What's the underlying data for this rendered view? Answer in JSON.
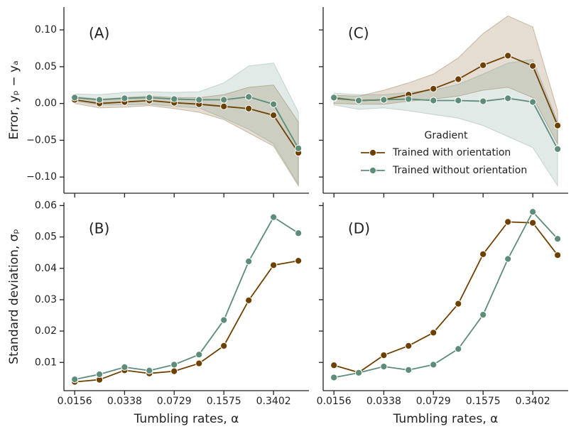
{
  "chart_data": [
    {
      "type": "line",
      "annotation": "(A)",
      "ylabel": "Error, yₚ − yₐ",
      "x": [
        0.0156,
        0.0229,
        0.0338,
        0.0496,
        0.0729,
        0.1072,
        0.1575,
        0.2315,
        0.3402,
        0.5
      ],
      "xlim": [
        0.0132,
        0.589
      ],
      "xticks": [
        0.0156,
        0.0338,
        0.0729,
        0.1575,
        0.3402
      ],
      "xscale": "log",
      "ylim": [
        -0.122,
        0.131
      ],
      "yticks": [
        {
          "value": -0.1,
          "label": "−0.10"
        },
        {
          "value": -0.05,
          "label": "−0.05"
        },
        {
          "value": 0,
          "label": "0.00"
        },
        0.05,
        {
          "value": 0.1,
          "label": "0.10"
        }
      ],
      "series": [
        {
          "name": "Trained with orientation",
          "color": "#6e4000",
          "values": [
            0.005,
            0.0,
            0.002,
            0.004,
            0.001,
            -0.001,
            -0.004,
            -0.007,
            -0.016,
            -0.067
          ],
          "upper": [
            0.009,
            0.006,
            0.008,
            0.01,
            0.008,
            0.008,
            0.012,
            0.022,
            0.025,
            -0.025
          ],
          "lower": [
            0.0,
            -0.006,
            -0.005,
            -0.003,
            -0.007,
            -0.012,
            -0.022,
            -0.04,
            -0.058,
            -0.112
          ]
        },
        {
          "name": "Trained without orientation",
          "color": "#5d8c79",
          "values": [
            0.008,
            0.005,
            0.007,
            0.008,
            0.006,
            0.005,
            0.005,
            0.009,
            -0.001,
            -0.061
          ],
          "upper": [
            0.013,
            0.012,
            0.015,
            0.016,
            0.015,
            0.016,
            0.028,
            0.051,
            0.055,
            -0.012
          ],
          "lower": [
            0.003,
            -0.002,
            -0.002,
            -0.001,
            -0.004,
            -0.006,
            -0.02,
            -0.035,
            -0.055,
            -0.11
          ]
        }
      ]
    },
    {
      "type": "line",
      "annotation": "(C)",
      "legend_title": "Gradient",
      "x": [
        0.0156,
        0.0229,
        0.0338,
        0.0496,
        0.0729,
        0.1072,
        0.1575,
        0.2315,
        0.3402,
        0.5
      ],
      "xlim": [
        0.0132,
        0.589
      ],
      "xticks": [
        0.0156,
        0.0338,
        0.0729,
        0.1575,
        0.3402
      ],
      "xscale": "log",
      "ylim": [
        -0.122,
        0.131
      ],
      "yticks": [
        -0.1,
        -0.05,
        0,
        0.05,
        0.1
      ],
      "series": [
        {
          "name": "Trained with orientation",
          "color": "#6e4000",
          "values": [
            0.007,
            0.004,
            0.005,
            0.012,
            0.02,
            0.033,
            0.052,
            0.065,
            0.051,
            -0.03
          ],
          "upper": [
            0.011,
            0.01,
            0.018,
            0.028,
            0.04,
            0.062,
            0.095,
            0.119,
            0.104,
            -0.01
          ],
          "lower": [
            0.0,
            -0.001,
            -0.001,
            0.003,
            0.006,
            0.01,
            0.018,
            0.022,
            0.008,
            -0.055
          ]
        },
        {
          "name": "Trained without orientation",
          "color": "#5d8c79",
          "values": [
            0.008,
            0.004,
            0.005,
            0.006,
            0.004,
            0.004,
            0.003,
            0.007,
            0.002,
            -0.062
          ],
          "upper": [
            0.014,
            0.012,
            0.012,
            0.015,
            0.018,
            0.026,
            0.04,
            0.055,
            0.06,
            -0.025
          ],
          "lower": [
            -0.002,
            -0.008,
            -0.006,
            -0.01,
            -0.015,
            -0.02,
            -0.03,
            -0.045,
            -0.06,
            -0.112
          ]
        }
      ]
    },
    {
      "type": "line",
      "annotation": "(B)",
      "ylabel": "Standard deviation, σₚ",
      "xlabel": "Tumbling rates, α",
      "x": [
        0.0156,
        0.0229,
        0.0338,
        0.0496,
        0.0729,
        0.1072,
        0.1575,
        0.2315,
        0.3402,
        0.5
      ],
      "xlim": [
        0.0132,
        0.589
      ],
      "xticks": [
        0.0156,
        0.0338,
        0.0729,
        0.1575,
        0.3402
      ],
      "xscale": "log",
      "ylim": [
        0.001,
        0.061
      ],
      "yticks": [
        0.01,
        0.02,
        0.03,
        0.04,
        0.05,
        0.06
      ],
      "series": [
        {
          "name": "Trained with orientation",
          "color": "#6e4000",
          "values": [
            0.0038,
            0.0045,
            0.0075,
            0.0065,
            0.0072,
            0.0097,
            0.0153,
            0.0298,
            0.041,
            0.0424
          ]
        },
        {
          "name": "Trained without orientation",
          "color": "#5d8c79",
          "values": [
            0.0046,
            0.0062,
            0.0085,
            0.0074,
            0.0093,
            0.0125,
            0.0235,
            0.0422,
            0.0563,
            0.0512
          ]
        }
      ]
    },
    {
      "type": "line",
      "annotation": "(D)",
      "xlabel": "Tumbling rates, α",
      "x": [
        0.0156,
        0.0229,
        0.0338,
        0.0496,
        0.0729,
        0.1072,
        0.1575,
        0.2315,
        0.3402,
        0.5
      ],
      "xlim": [
        0.0132,
        0.589
      ],
      "xticks": [
        0.0156,
        0.0338,
        0.0729,
        0.1575,
        0.3402
      ],
      "xscale": "log",
      "ylim": [
        0.001,
        0.061
      ],
      "yticks": [
        0.01,
        0.02,
        0.03,
        0.04,
        0.05,
        0.06
      ],
      "series": [
        {
          "name": "Trained with orientation",
          "color": "#6e4000",
          "values": [
            0.0091,
            0.0068,
            0.0123,
            0.0153,
            0.0195,
            0.0287,
            0.0445,
            0.0548,
            0.0545,
            0.0442
          ]
        },
        {
          "name": "Trained without orientation",
          "color": "#5d8c79",
          "values": [
            0.0052,
            0.0067,
            0.0087,
            0.0076,
            0.0093,
            0.0143,
            0.0252,
            0.043,
            0.058,
            0.0494
          ]
        }
      ]
    }
  ]
}
